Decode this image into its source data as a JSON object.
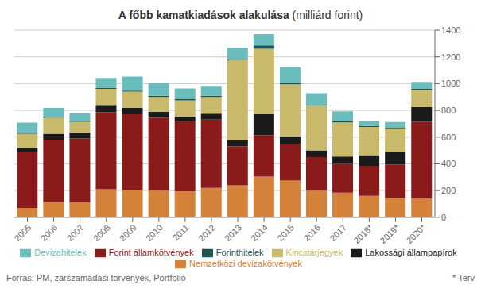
{
  "chart_data": {
    "type": "bar",
    "title": "A főbb kamatkiadások alakulása",
    "subtitle": "(milliárd forint)",
    "categories": [
      "2005",
      "2006",
      "2007",
      "2008",
      "2009",
      "2010",
      "2011",
      "2012",
      "2013",
      "2014",
      "2015",
      "2016",
      "2017",
      "2018*",
      "2019*",
      "2020*"
    ],
    "series": [
      {
        "name": "Nemzetközi devizakötvények",
        "color": "#D4813A",
        "values": [
          70,
          115,
          110,
          210,
          205,
          200,
          195,
          220,
          240,
          305,
          275,
          200,
          185,
          160,
          145,
          140
        ]
      },
      {
        "name": "Forint államkötvények",
        "color": "#8B1A1A",
        "values": [
          420,
          465,
          480,
          575,
          565,
          545,
          525,
          510,
          290,
          310,
          275,
          250,
          215,
          225,
          250,
          575
        ]
      },
      {
        "name": "Lakossági állampapírok",
        "color": "#1A1A1A",
        "values": [
          30,
          45,
          45,
          55,
          50,
          45,
          35,
          45,
          45,
          155,
          55,
          50,
          55,
          80,
          95,
          110
        ]
      },
      {
        "name": "Kincstárjegyek",
        "color": "#C8BA6A",
        "values": [
          105,
          120,
          80,
          120,
          120,
          110,
          120,
          125,
          600,
          490,
          390,
          330,
          255,
          210,
          175,
          130
        ]
      },
      {
        "name": "Forinthitelek",
        "color": "#1A5454",
        "values": [
          8,
          8,
          8,
          8,
          8,
          8,
          8,
          8,
          8,
          25,
          8,
          8,
          8,
          8,
          8,
          8
        ]
      },
      {
        "name": "Devizahitelek",
        "color": "#6BBCBC",
        "values": [
          75,
          65,
          55,
          75,
          105,
          95,
          80,
          75,
          85,
          85,
          120,
          90,
          75,
          35,
          40,
          50
        ]
      }
    ],
    "ylim": [
      0,
      1400
    ],
    "yticks": [
      0,
      200,
      400,
      600,
      800,
      1000,
      1200,
      1400
    ],
    "stacked": true,
    "grid": true,
    "legend": "bottom",
    "annotations": [
      "Forrás: PM, zárszámadási törvények, Portfolio",
      "* Terv"
    ]
  }
}
